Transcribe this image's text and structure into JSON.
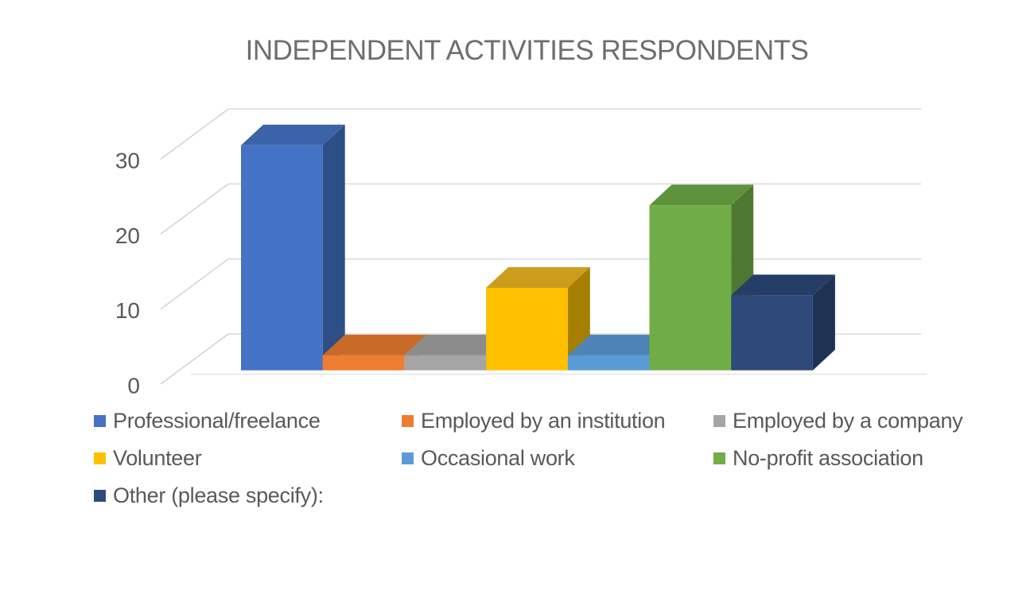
{
  "chart_data": {
    "type": "bar",
    "variant": "3d-clustered-column",
    "title": "INDEPENDENT ACTIVITIES RESPONDENTS",
    "categories": [
      "Professional/freelance",
      "Employed by an institution",
      "Employed by a company",
      "Volunteer",
      "Occasional work",
      "No-profit association",
      "Other (please specify):"
    ],
    "values": [
      30,
      2,
      2,
      11,
      2,
      22,
      10
    ],
    "y_axis": {
      "min": 0,
      "max": 30,
      "tick_interval": 10,
      "ticks": [
        0,
        10,
        20,
        30
      ],
      "gridlines": true
    },
    "x_axis": {
      "category_labels_shown": false
    },
    "legend": {
      "position": "bottom",
      "columns": 3
    },
    "colors": {
      "series": [
        {
          "front": "#4472C4",
          "top": "#3B63A9",
          "side": "#2E4E86"
        },
        {
          "front": "#ED7D31",
          "top": "#C96A29",
          "side": "#A8561E"
        },
        {
          "front": "#A5A5A5",
          "top": "#8C8C8C",
          "side": "#747474"
        },
        {
          "front": "#FFC000",
          "top": "#CC9C1C",
          "side": "#A67E00"
        },
        {
          "front": "#5B9BD5",
          "top": "#4D84B5",
          "side": "#3F6C94"
        },
        {
          "front": "#70AD47",
          "top": "#5F923C",
          "side": "#4E7831"
        },
        {
          "front": "#2E4A7B",
          "top": "#253E68",
          "side": "#1E3254"
        }
      ],
      "gridline": "#D9D9D9",
      "leader_line": "#D2D2D2",
      "floor_edge": "#EAEAEA",
      "title_text": "#6E6E6E",
      "axis_text": "#595959",
      "legend_text": "#595959",
      "background": "#FFFFFF"
    }
  }
}
